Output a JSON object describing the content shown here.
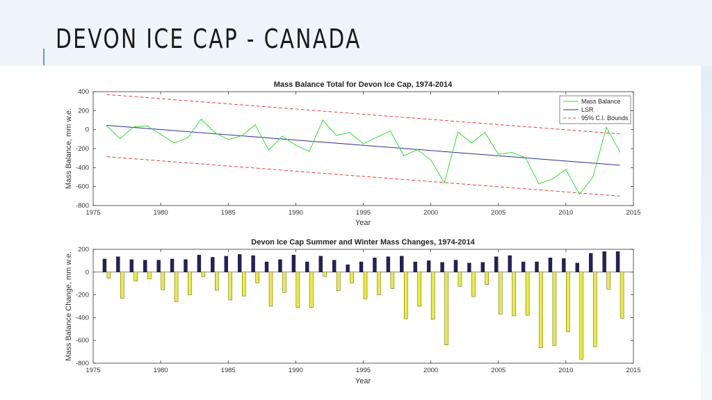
{
  "slide": {
    "title": "DEVON ICE CAP - CANADA"
  },
  "colors": {
    "mass_balance": "#33dd33",
    "lsr": "#2a2aa0",
    "ci_bounds": "#e04040",
    "winter_bar": "#22225e",
    "summer_bar": "#eeee33",
    "accent": "#4aa3c9"
  },
  "chart_data": [
    {
      "type": "line",
      "title": "Mass Balance Total for Devon Ice Cap, 1974-2014",
      "xlabel": "Year",
      "ylabel": "Mass Balance, mm w.e.",
      "xlim": [
        1975,
        2015
      ],
      "ylim": [
        -800,
        400
      ],
      "xticks": [
        1975,
        1980,
        1985,
        1990,
        1995,
        2000,
        2005,
        2010,
        2015
      ],
      "yticks": [
        -800,
        -600,
        -400,
        -200,
        0,
        200,
        400
      ],
      "legend_position": "top-right",
      "x": [
        1976,
        1977,
        1978,
        1979,
        1980,
        1981,
        1982,
        1983,
        1984,
        1985,
        1986,
        1987,
        1988,
        1989,
        1990,
        1991,
        1992,
        1993,
        1994,
        1995,
        1996,
        1997,
        1998,
        1999,
        2000,
        2001,
        2002,
        2003,
        2004,
        2005,
        2006,
        2007,
        2008,
        2009,
        2010,
        2011,
        2012,
        2013,
        2014
      ],
      "series": [
        {
          "name": "Mass Balance",
          "style": "solid",
          "color_key": "mass_balance",
          "values": [
            40,
            -95,
            30,
            40,
            -50,
            -140,
            -85,
            110,
            -30,
            -105,
            -65,
            50,
            -215,
            -70,
            -165,
            -230,
            100,
            -60,
            -30,
            -150,
            -80,
            -15,
            -275,
            -210,
            -320,
            -560,
            -25,
            -140,
            -30,
            -260,
            -240,
            -295,
            -570,
            -520,
            -420,
            -680,
            -500,
            25,
            -235
          ]
        },
        {
          "name": "LSR",
          "style": "solid",
          "color_key": "lsr",
          "line_x": [
            1976,
            2014
          ],
          "line_y": [
            45,
            -375
          ]
        },
        {
          "name": "95% C.I. Bounds",
          "style": "dashed",
          "color_key": "ci_bounds",
          "upper_x": [
            1976,
            2014
          ],
          "upper_y": [
            370,
            -45
          ],
          "lower_x": [
            1976,
            2014
          ],
          "lower_y": [
            -285,
            -700
          ]
        }
      ]
    },
    {
      "type": "bar",
      "title": "Devon Ice Cap Summer and Winter Mass Changes, 1974-2014",
      "xlabel": "Year",
      "ylabel": "Mass Balance Change, mm w.e.",
      "xlim": [
        1975,
        2015
      ],
      "ylim": [
        -800,
        200
      ],
      "xticks": [
        1975,
        1980,
        1985,
        1990,
        1995,
        2000,
        2005,
        2010,
        2015
      ],
      "yticks": [
        -800,
        -600,
        -400,
        -200,
        0,
        200
      ],
      "x": [
        1976,
        1977,
        1978,
        1979,
        1980,
        1981,
        1982,
        1983,
        1984,
        1985,
        1986,
        1987,
        1988,
        1989,
        1990,
        1991,
        1992,
        1993,
        1994,
        1995,
        1996,
        1997,
        1998,
        1999,
        2000,
        2001,
        2002,
        2003,
        2004,
        2005,
        2006,
        2007,
        2008,
        2009,
        2010,
        2011,
        2012,
        2013,
        2014
      ],
      "series": [
        {
          "role": "winter",
          "color_key": "winter_bar",
          "values": [
            115,
            135,
            110,
            105,
            105,
            115,
            110,
            150,
            130,
            140,
            155,
            145,
            90,
            110,
            150,
            90,
            140,
            105,
            65,
            90,
            125,
            135,
            140,
            90,
            100,
            85,
            105,
            80,
            85,
            135,
            145,
            90,
            90,
            125,
            120,
            80,
            165,
            180,
            180
          ]
        },
        {
          "role": "summer",
          "color_key": "summer_bar",
          "values": [
            -55,
            -230,
            -80,
            -60,
            -155,
            -260,
            -200,
            -40,
            -160,
            -245,
            -210,
            -95,
            -300,
            -180,
            -310,
            -310,
            -40,
            -165,
            -95,
            -235,
            -200,
            -145,
            -410,
            -300,
            -415,
            -640,
            -125,
            -215,
            -110,
            -370,
            -385,
            -380,
            -665,
            -645,
            -525,
            -765,
            -655,
            -150,
            -405
          ]
        }
      ]
    }
  ]
}
